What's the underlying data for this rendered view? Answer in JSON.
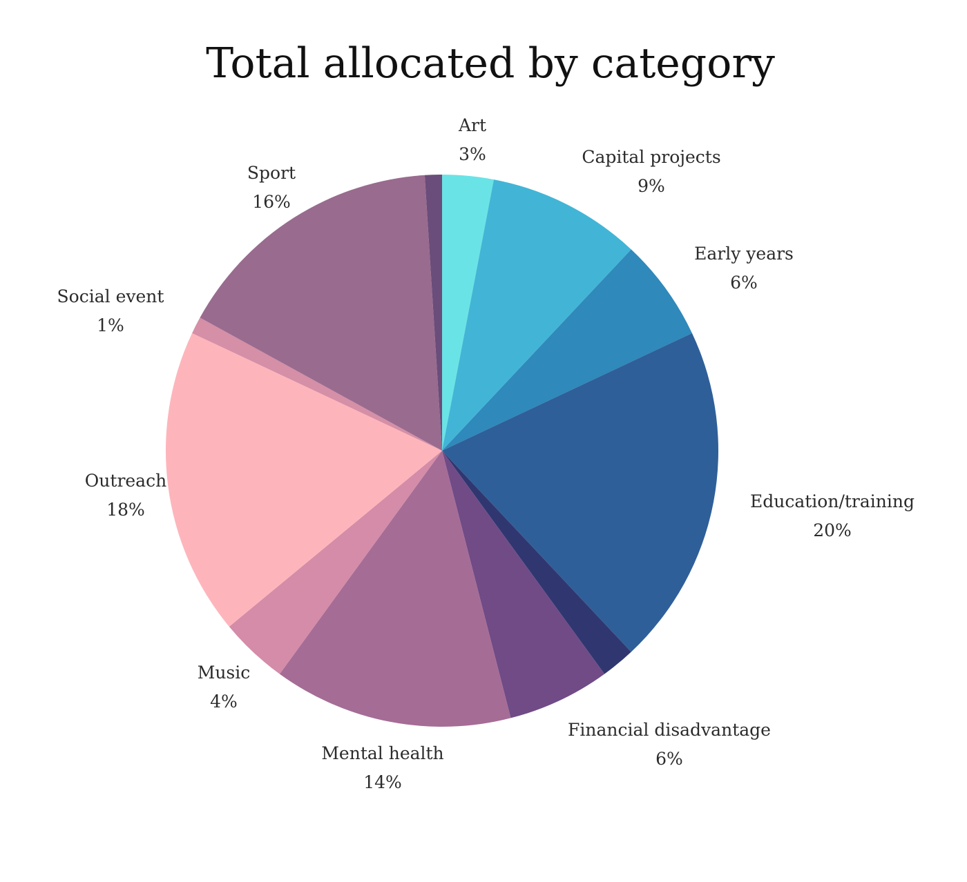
{
  "chart_data": {
    "type": "pie",
    "title": "Total allocated by category",
    "slices": [
      {
        "label": "Art",
        "value": 3,
        "value_label": "3%",
        "color": "#6ae3e6"
      },
      {
        "label": "Capital projects",
        "value": 9,
        "value_label": "9%",
        "color": "#42b5d6"
      },
      {
        "label": "Early years",
        "value": 6,
        "value_label": "6%",
        "color": "#2f89bb"
      },
      {
        "label": "Education/training",
        "value": 20,
        "value_label": "20%",
        "color": "#2f5f98"
      },
      {
        "label": "",
        "value": 2,
        "value_label": "",
        "color": "#303770"
      },
      {
        "label": "Financial disadvantage",
        "value": 6,
        "value_label": "6%",
        "color": "#704b86"
      },
      {
        "label": "Mental health",
        "value": 14,
        "value_label": "14%",
        "color": "#a56c96"
      },
      {
        "label": "Music",
        "value": 4,
        "value_label": "4%",
        "color": "#d48ca8"
      },
      {
        "label": "Outreach",
        "value": 18,
        "value_label": "18%",
        "color": "#fdb5bb"
      },
      {
        "label": "Social event",
        "value": 1,
        "value_label": "1%",
        "color": "#d58fa6"
      },
      {
        "label": "Sport",
        "value": 16,
        "value_label": "16%",
        "color": "#996b8f"
      },
      {
        "label": "",
        "value": 1,
        "value_label": "",
        "color": "#6a4d7a"
      }
    ]
  }
}
